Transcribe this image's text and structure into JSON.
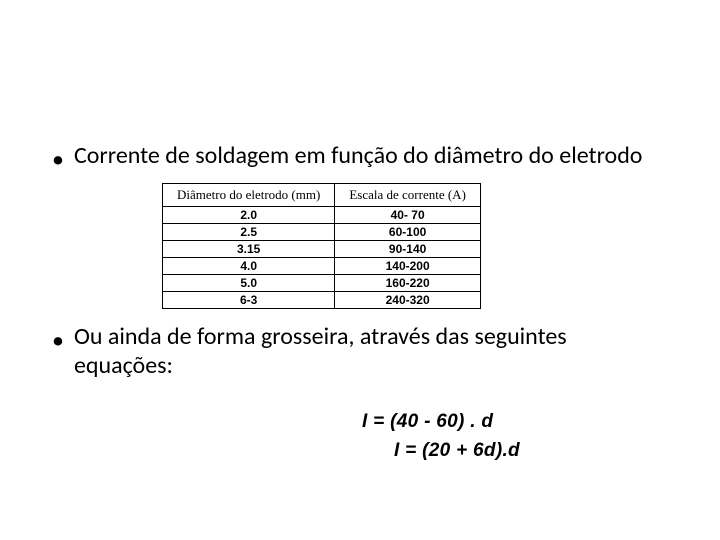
{
  "bullets": {
    "first": "Corrente de soldagem em função do diâmetro do eletrodo",
    "second": "Ou ainda de forma grosseira, através das seguintes equações:"
  },
  "table": {
    "type": "table",
    "columns": [
      "Diâmetro do eletrodo (mm)",
      "Escala de corrente (A)"
    ],
    "header_font_family": "Times New Roman",
    "header_fontsize": 13,
    "header_fontweight": 400,
    "cell_font_family": "Arial",
    "cell_fontsize": 12,
    "cell_fontweight": 700,
    "border_color": "#000000",
    "background_color": "#ffffff",
    "rows": [
      [
        "2.0",
        "40- 70"
      ],
      [
        "2.5",
        "60-100"
      ],
      [
        "3.15",
        "90-140"
      ],
      [
        "4.0",
        "140-200"
      ],
      [
        "5.0",
        "160-220"
      ],
      [
        "6-3",
        "240-320"
      ]
    ]
  },
  "equations": {
    "eq1": "I = (40 - 60) . d",
    "eq2": "I = (20 + 6d).d",
    "font_family": "Arial",
    "fontweight": 700,
    "fontstyle": "italic",
    "fontsize": 19,
    "color": "#000000"
  },
  "style": {
    "slide_background": "#ffffff",
    "bullet_char": "•",
    "bullet_fontsize": 24,
    "body_font": "Calibri",
    "text_color": "#000000"
  }
}
